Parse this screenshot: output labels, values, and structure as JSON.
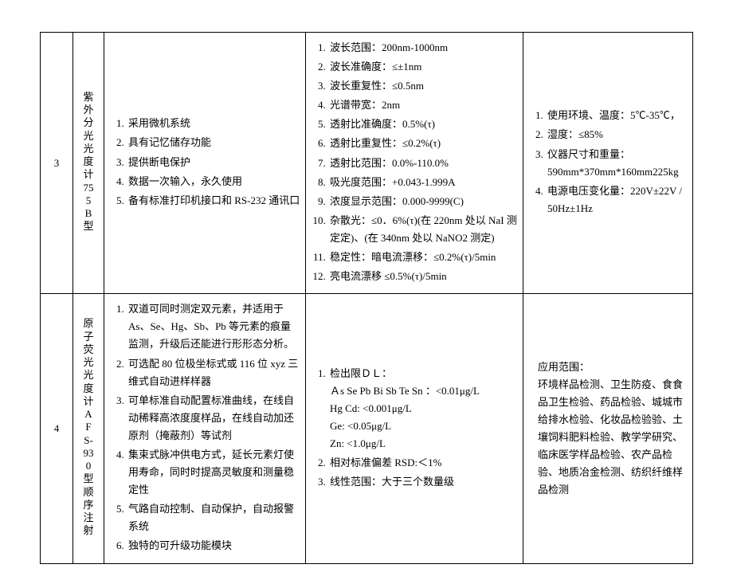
{
  "rows": [
    {
      "idx": "3",
      "name": "紫外分光光度计755B型",
      "colA": [
        "采用微机系统",
        "具有记忆储存功能",
        "提供断电保护",
        "数据一次输入，永久使用",
        "备有标准打印机接口和 RS-232 通讯口"
      ],
      "colB": [
        "波长范围：200nm-1000nm",
        "波长准确度：≤±1nm",
        "波长重复性：≤0.5nm",
        "光谱带宽：2nm",
        "透射比准确度：0.5%(τ)",
        "透射比重复性：≤0.2%(τ)",
        "透射比范围：0.0%-110.0%",
        "吸光度范围：+0.043-1.999A",
        "浓度显示范围：0.000-9999(C)",
        "杂散光：≤0．6%(τ)(在 220nm 处以 NaI 测定定)、(在 340nm 处以 NaNO2 测定)",
        "稳定性：暗电流漂移：≤0.2%(τ)/5min",
        "亮电流漂移 ≤0.5%(τ)/5min"
      ],
      "colC": [
        "使用环境、温度：5℃-35℃，",
        "湿度：≤85%",
        "仪器尺寸和重量：590mm*370mm*160mm225kg",
        "电源电压变化量：220V±22V / 50Hz±1Hz"
      ]
    },
    {
      "idx": "4",
      "name": "原子荧光光度计AFS-930型顺序注射",
      "colA": [
        "双道可同时测定双元素，并适用于 As、Se、Hg、Sb、Pb 等元素的痕量监测，升级后还能进行形形态分析。",
        "可选配 80 位极坐标式或 116 位 xyz 三维式自动进样样器",
        "可单标准自动配置标准曲线，在线自动稀释高浓度度样品，在线自动加还原剂（掩蔽剂）等试剂",
        "集束式脉冲供电方式，延长元素灯使用寿命，同时时提高灵敏度和测量稳定性",
        "气路自动控制、自动保护，自动报警系统",
        "独特的可升级功能模块"
      ],
      "colB": [
        "检出限ＤＬ：\nＡs Se Pb Bi Sb Te Sn ：<0.01μg/L\nHg Cd: <0.001μg/L\nGe: <0.05μg/L\nZn: <1.0μg/L",
        "相对标准偏差 RSD:＜1%",
        "线性范围：大于三个数量级"
      ],
      "colCHeader": "应用范围：",
      "colCBody": "环境样品检测、卫生防疫、食食品卫生检验、药品检验、城城市给排水检验、化妆品检验验、土壤饲料肥料检验、教学学研究、临床医学样品检验、农产品检验、地质冶金检测、纺织纤维样品检测"
    }
  ]
}
